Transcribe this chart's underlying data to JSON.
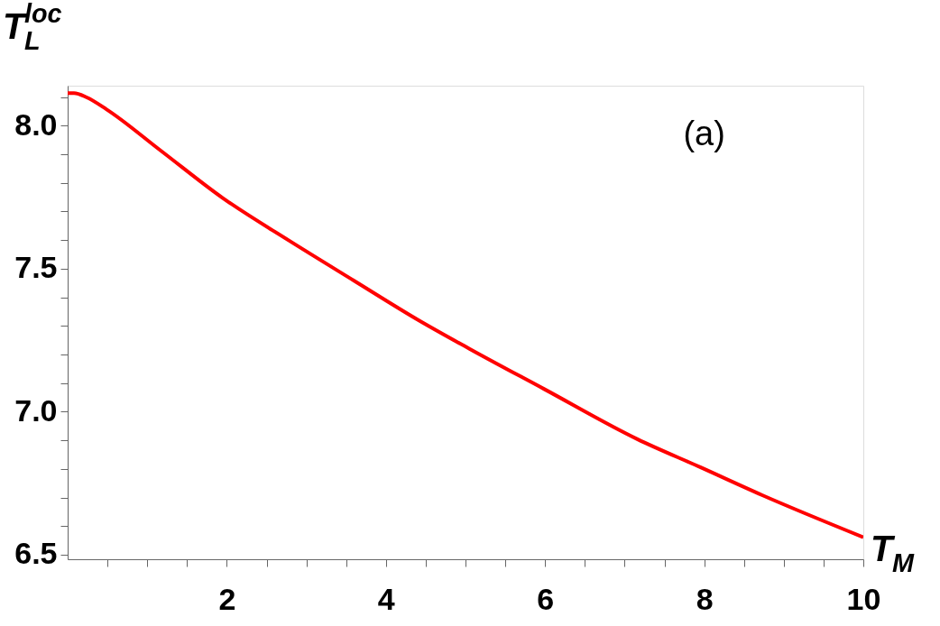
{
  "chart_data": {
    "type": "line",
    "xlabel": "T$_{M}$",
    "ylabel": "T$_{L}$$^{loc}$",
    "annotations": [
      "(a)"
    ],
    "x": [
      0,
      0.08,
      0.24,
      0.49,
      1.17,
      1.95,
      2.79,
      3.6,
      4.41,
      5.05,
      5.99,
      7.16,
      7.95,
      8.73,
      10.0
    ],
    "series": [
      {
        "color": "#ff0000",
        "values": [
          8.114,
          8.114,
          8.099,
          8.057,
          7.913,
          7.747,
          7.597,
          7.458,
          7.32,
          7.22,
          7.079,
          6.904,
          6.806,
          6.708,
          6.561
        ]
      }
    ],
    "xlim": [
      0,
      10
    ],
    "ylim": [
      6.484,
      8.14
    ],
    "xticks": [
      {
        "value": 0.5,
        "label": null
      },
      {
        "value": 1,
        "label": null
      },
      {
        "value": 1.5,
        "label": null
      },
      2,
      {
        "value": 2.5,
        "label": null
      },
      {
        "value": 3,
        "label": null
      },
      {
        "value": 3.5,
        "label": null
      },
      4,
      {
        "value": 4.5,
        "label": null
      },
      {
        "value": 5,
        "label": null
      },
      {
        "value": 5.5,
        "label": null
      },
      6,
      {
        "value": 6.5,
        "label": null
      },
      {
        "value": 7,
        "label": null
      },
      {
        "value": 7.5,
        "label": null
      },
      8,
      {
        "value": 8.5,
        "label": null
      },
      {
        "value": 9,
        "label": null
      },
      {
        "value": 9.5,
        "label": null
      },
      10
    ],
    "yticks": [
      {
        "value": 6.5,
        "label": "6.5"
      },
      {
        "value": 6.6,
        "label": null
      },
      {
        "value": 6.7,
        "label": null
      },
      {
        "value": 6.8,
        "label": null
      },
      {
        "value": 6.9,
        "label": null
      },
      {
        "value": 7.0,
        "label": "7.0"
      },
      {
        "value": 7.1,
        "label": null
      },
      {
        "value": 7.2,
        "label": null
      },
      {
        "value": 7.3,
        "label": null
      },
      {
        "value": 7.4,
        "label": null
      },
      {
        "value": 7.5,
        "label": "7.5"
      },
      {
        "value": 7.6,
        "label": null
      },
      {
        "value": 7.7,
        "label": null
      },
      {
        "value": 7.8,
        "label": null
      },
      {
        "value": 7.9,
        "label": null
      },
      {
        "value": 8.0,
        "label": "8.0"
      },
      {
        "value": 8.1,
        "label": null
      }
    ],
    "grid": false,
    "marker": "none",
    "line_style": "solid"
  }
}
